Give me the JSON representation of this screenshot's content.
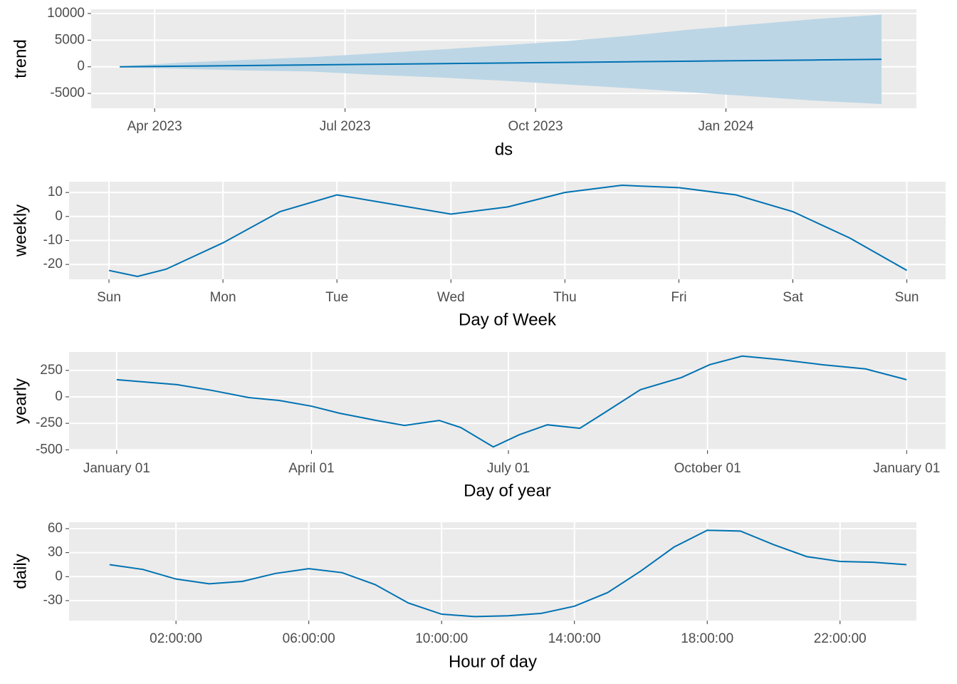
{
  "chart_data": [
    {
      "type": "line",
      "xlabel": "ds",
      "ylabel": "trend",
      "color": "#0072B2",
      "band_color": "#bcd6e6",
      "grid": true,
      "x": [
        "2023-03",
        "2023-04",
        "2023-05",
        "2023-06",
        "2023-07",
        "2023-08",
        "2023-09",
        "2023-10",
        "2023-11",
        "2023-12",
        "2024-01",
        "2024-02",
        "2024-03"
      ],
      "values": [
        0,
        120,
        230,
        350,
        470,
        580,
        700,
        820,
        930,
        1050,
        1170,
        1280,
        1400
      ],
      "upper": [
        100,
        800,
        1300,
        1800,
        2500,
        3200,
        4000,
        4800,
        5800,
        7000,
        8000,
        9000,
        9800
      ],
      "lower": [
        -100,
        -400,
        -700,
        -900,
        -1500,
        -2000,
        -2600,
        -3300,
        -4000,
        -4800,
        -5600,
        -6400,
        -7000
      ],
      "xlim": [
        "2023-03",
        "2024-04"
      ],
      "xticks": [
        {
          "value": "2023-04",
          "label": "Apr 2023"
        },
        {
          "value": "2023-07",
          "label": "Jul 2023"
        },
        {
          "value": "2023-10",
          "label": "Oct 2023"
        },
        {
          "value": "2024-01",
          "label": "Jan 2024"
        }
      ],
      "ylim": [
        -7800,
        10800
      ],
      "yticks": [
        -5000,
        0,
        5000,
        10000
      ]
    },
    {
      "type": "line",
      "xlabel": "Day of Week",
      "ylabel": "weekly",
      "color": "#0072B2",
      "grid": true,
      "x": [
        0,
        0.25,
        0.5,
        1,
        1.5,
        2,
        2.5,
        3,
        3.5,
        4,
        4.5,
        5,
        5.5,
        6,
        6.5,
        7
      ],
      "values": [
        -22.5,
        -25,
        -22,
        -11,
        2,
        9,
        5,
        1,
        4,
        10,
        13,
        12,
        9,
        2,
        -9,
        -22.5
      ],
      "xlim": [
        -0.35,
        7.34
      ],
      "xticks": [
        {
          "value": 0,
          "label": "Sun"
        },
        {
          "value": 1,
          "label": "Mon"
        },
        {
          "value": 2,
          "label": "Tue"
        },
        {
          "value": 3,
          "label": "Wed"
        },
        {
          "value": 4,
          "label": "Thu"
        },
        {
          "value": 5,
          "label": "Fri"
        },
        {
          "value": 6,
          "label": "Sat"
        },
        {
          "value": 7,
          "label": "Sun"
        }
      ],
      "ylim": [
        -26.2,
        14.5
      ],
      "yticks": [
        -20,
        -10,
        0,
        10
      ]
    },
    {
      "type": "line",
      "xlabel": "Day of year",
      "ylabel": "yearly",
      "color": "#0072B2",
      "grid": true,
      "x": [
        0,
        28,
        44,
        61,
        75,
        90,
        103,
        120,
        133,
        149,
        159,
        174,
        186,
        199,
        214,
        225,
        242,
        261,
        274,
        289,
        307,
        326,
        346,
        365
      ],
      "values": [
        162,
        115,
        61,
        -7,
        -34,
        -88,
        -155,
        -223,
        -270,
        -223,
        -290,
        -473,
        -358,
        -264,
        -297,
        -155,
        68,
        183,
        304,
        385,
        351,
        304,
        264,
        162
      ],
      "xlim": [
        -22,
        383
      ],
      "xticks": [
        {
          "value": 0,
          "label": "January 01"
        },
        {
          "value": 90,
          "label": "April 01"
        },
        {
          "value": 181,
          "label": "July 01"
        },
        {
          "value": 273,
          "label": "October 01"
        },
        {
          "value": 365,
          "label": "January 01"
        }
      ],
      "ylim": [
        -505,
        424
      ],
      "yticks": [
        -500,
        -250,
        0,
        250
      ]
    },
    {
      "type": "line",
      "xlabel": "Hour of day",
      "ylabel": "daily",
      "color": "#0072B2",
      "grid": true,
      "x": [
        0,
        1,
        2,
        3,
        4,
        5,
        6,
        7,
        8,
        9,
        10,
        11,
        12,
        13,
        14,
        15,
        16,
        17,
        18,
        19,
        20,
        21,
        22,
        23,
        24
      ],
      "values": [
        15,
        9,
        -3,
        -9,
        -6,
        4,
        10,
        5,
        -10,
        -33,
        -47,
        -50,
        -49,
        -46,
        -37,
        -20,
        7,
        37,
        58,
        57,
        40,
        25,
        19,
        18,
        15
      ],
      "xlim": [
        -1.22,
        24.3
      ],
      "xticks": [
        {
          "value": 2,
          "label": "02:00:00"
        },
        {
          "value": 6,
          "label": "06:00:00"
        },
        {
          "value": 10,
          "label": "10:00:00"
        },
        {
          "value": 14,
          "label": "14:00:00"
        },
        {
          "value": 18,
          "label": "18:00:00"
        },
        {
          "value": 22,
          "label": "22:00:00"
        }
      ],
      "ylim": [
        -55,
        68
      ],
      "yticks": [
        -30,
        0,
        30,
        60
      ]
    }
  ]
}
